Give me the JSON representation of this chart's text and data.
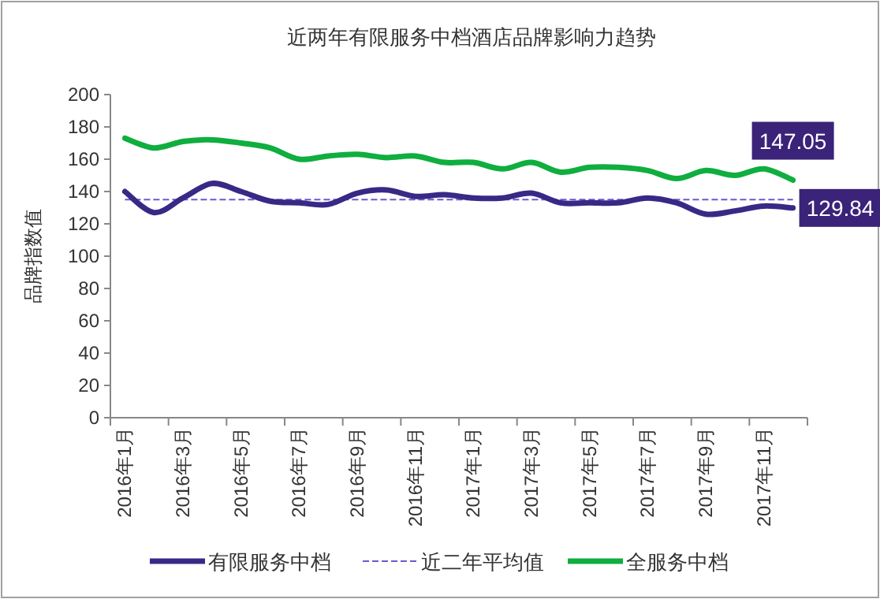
{
  "chart_data": {
    "type": "line",
    "title": "近两年有限服务中档酒店品牌影响力趋势",
    "ylabel": "品牌指数值",
    "categories": [
      "2016年1月",
      null,
      "2016年3月",
      null,
      "2016年5月",
      null,
      "2016年7月",
      null,
      "2016年9月",
      null,
      "2016年11月",
      null,
      "2017年1月",
      null,
      "2017年3月",
      null,
      "2017年5月",
      null,
      "2017年7月",
      null,
      "2017年9月",
      null,
      "2017年11月",
      null
    ],
    "series": [
      {
        "name": "有限服务中档",
        "color": "#3a2886",
        "values": [
          140,
          127,
          136,
          145,
          140,
          134,
          133,
          132,
          139,
          141,
          137,
          138,
          136,
          136,
          139,
          133,
          133,
          133,
          136,
          133,
          126,
          128,
          131,
          129.84
        ],
        "value_labels": [
          null,
          null,
          null,
          null,
          null,
          null,
          null,
          null,
          null,
          null,
          null,
          null,
          null,
          null,
          null,
          null,
          null,
          null,
          null,
          null,
          null,
          null,
          null,
          "129.84"
        ]
      },
      {
        "name": "全服务中档",
        "color": "#0fae3f",
        "values": [
          173,
          167,
          171,
          172,
          170,
          167,
          160,
          162,
          163,
          161,
          162,
          158,
          158,
          154,
          158,
          152,
          155,
          155,
          153,
          148,
          153,
          150,
          154,
          147.05
        ],
        "value_labels": [
          null,
          null,
          null,
          null,
          null,
          null,
          null,
          null,
          null,
          null,
          null,
          null,
          null,
          null,
          null,
          null,
          null,
          null,
          null,
          null,
          null,
          null,
          null,
          "147.05"
        ]
      }
    ],
    "ref_lines": [
      {
        "axis": "y",
        "value": 135,
        "label": "近二年平均值",
        "color": "#6a5acd",
        "line_style": "dashed"
      }
    ],
    "ylim": [
      0,
      200
    ],
    "yticks": [
      0,
      20,
      40,
      60,
      80,
      100,
      120,
      140,
      160,
      180,
      200
    ],
    "grid": false,
    "legend": "bottom",
    "marker": "none",
    "line_style": "solid"
  }
}
